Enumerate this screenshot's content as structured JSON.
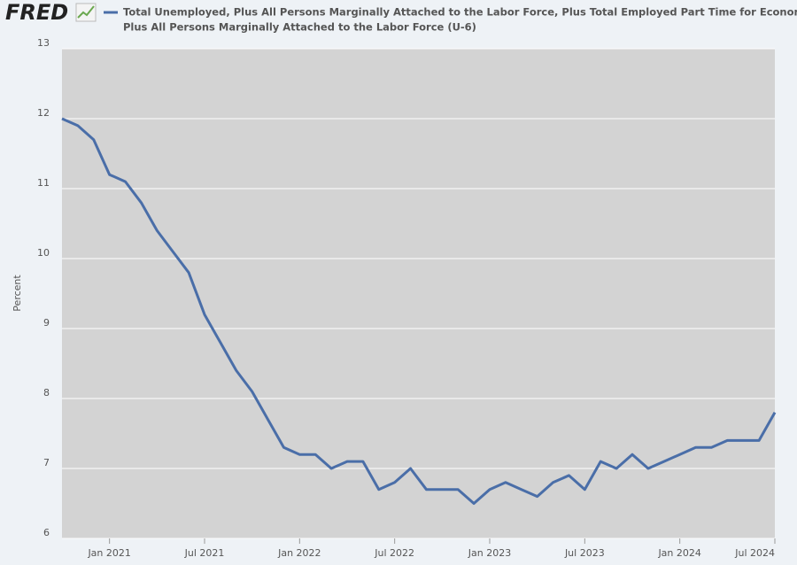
{
  "logo": "FRED",
  "chart_data": {
    "type": "line",
    "legend": [
      "Total Unemployed, Plus All Persons Marginally Attached to the Labor Force, Plus Total Employed Part Time for Econom",
      "Plus All Persons Marginally Attached to the Labor Force (U-6)"
    ],
    "ylabel": "Percent",
    "x": [
      "2020-10",
      "2020-11",
      "2020-12",
      "2021-01",
      "2021-02",
      "2021-03",
      "2021-04",
      "2021-05",
      "2021-06",
      "2021-07",
      "2021-08",
      "2021-09",
      "2021-10",
      "2021-11",
      "2021-12",
      "2022-01",
      "2022-02",
      "2022-03",
      "2022-04",
      "2022-05",
      "2022-06",
      "2022-07",
      "2022-08",
      "2022-09",
      "2022-10",
      "2022-11",
      "2022-12",
      "2023-01",
      "2023-02",
      "2023-03",
      "2023-04",
      "2023-05",
      "2023-06",
      "2023-07",
      "2023-08",
      "2023-09",
      "2023-10",
      "2023-11",
      "2023-12",
      "2024-01",
      "2024-02",
      "2024-03",
      "2024-04",
      "2024-05",
      "2024-06",
      "2024-07"
    ],
    "series": [
      {
        "color": "#4a6ea8",
        "values": [
          12.0,
          11.9,
          11.7,
          11.2,
          11.1,
          10.8,
          10.4,
          10.1,
          9.8,
          9.2,
          8.8,
          8.4,
          8.1,
          7.7,
          7.3,
          7.2,
          7.2,
          7.0,
          7.1,
          7.1,
          6.7,
          6.8,
          7.0,
          6.7,
          6.7,
          6.7,
          6.5,
          6.7,
          6.8,
          6.7,
          6.6,
          6.8,
          6.9,
          6.7,
          7.1,
          7.0,
          7.2,
          7.0,
          7.1,
          7.2,
          7.3,
          7.3,
          7.4,
          7.4,
          7.4,
          7.8
        ]
      }
    ],
    "xlim": [
      "2020-10",
      "2024-07"
    ],
    "xticks": [
      {
        "value": "2021-01",
        "label": "Jan 2021"
      },
      {
        "value": "2021-07",
        "label": "Jul 2021"
      },
      {
        "value": "2022-01",
        "label": "Jan 2022"
      },
      {
        "value": "2022-07",
        "label": "Jul 2022"
      },
      {
        "value": "2023-01",
        "label": "Jan 2023"
      },
      {
        "value": "2023-07",
        "label": "Jul 2023"
      },
      {
        "value": "2024-01",
        "label": "Jan 2024"
      },
      {
        "value": "2024-07",
        "label": "Jul 2024"
      }
    ],
    "ylim": [
      6,
      13
    ],
    "yticks": [
      6,
      7,
      8,
      9,
      10,
      11,
      12,
      13
    ],
    "grid": true
  }
}
